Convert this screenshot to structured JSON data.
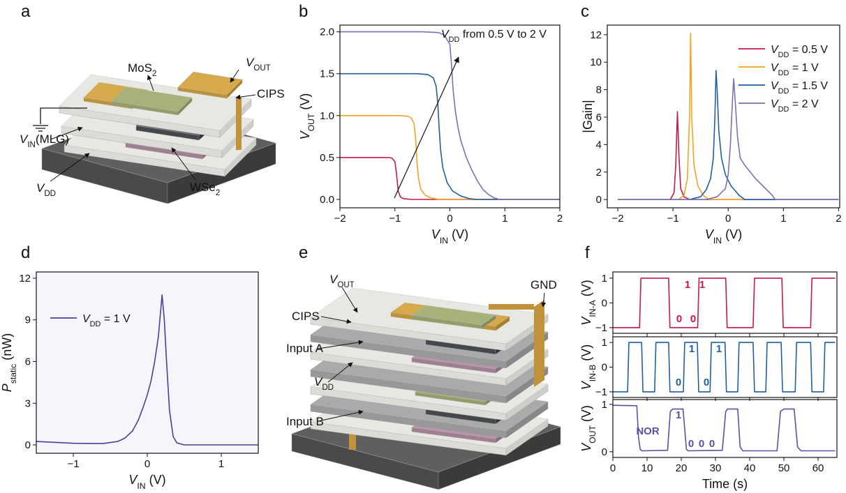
{
  "figure": {
    "panel_letters": [
      "a",
      "b",
      "c",
      "d",
      "e",
      "f"
    ],
    "device_a": {
      "labels": [
        [
          {
            "text": "MoS"
          },
          {
            "text": "2",
            "sub": true
          }
        ],
        [
          {
            "text": "V",
            "italic": true
          },
          {
            "text": "OUT",
            "sub": true
          }
        ],
        "CIPS",
        [
          {
            "text": "V",
            "italic": true
          },
          {
            "text": "IN",
            "sub": true
          },
          {
            "text": "(MLG)"
          }
        ],
        [
          {
            "text": "V",
            "italic": true
          },
          {
            "text": "DD",
            "sub": true
          }
        ],
        [
          {
            "text": "WSe"
          },
          {
            "text": "2",
            "sub": true
          }
        ]
      ]
    },
    "device_e": {
      "labels": [
        [
          {
            "text": "V",
            "italic": true
          },
          {
            "text": "OUT",
            "sub": true
          }
        ],
        "GND",
        "CIPS",
        "Input A",
        [
          {
            "text": "V",
            "italic": true
          },
          {
            "text": "DD",
            "sub": true
          }
        ],
        "Input B"
      ]
    }
  },
  "chart_data": [
    {
      "panel": "b",
      "type": "line",
      "x_label": [
        {
          "text": "V",
          "italic": true
        },
        {
          "text": "IN",
          "sub": true
        },
        {
          "text": " (V)"
        }
      ],
      "y_label": [
        {
          "text": "V",
          "italic": true
        },
        {
          "text": "OUT",
          "sub": true
        },
        {
          "text": " (V)"
        }
      ],
      "annotation": [
        {
          "text": "V",
          "italic": true
        },
        {
          "text": "DD",
          "sub": true
        },
        {
          "text": " from 0.5 V to 2 V"
        }
      ],
      "xlim": [
        -2,
        2
      ],
      "ylim": [
        -0.1,
        2.08
      ],
      "xticks": [
        {
          "value": -2,
          "label": "−2"
        },
        {
          "value": -1,
          "label": "−1"
        },
        0,
        1,
        2
      ],
      "yticks": [
        {
          "value": 0,
          "label": "0.0"
        },
        0.5,
        {
          "value": 1,
          "label": "1.0"
        },
        1.5,
        {
          "value": 2,
          "label": "2.0"
        }
      ],
      "series": [
        {
          "color": "#c8174a",
          "x": [
            -2,
            -1.2,
            -1.1,
            -1.05,
            -1.0,
            -0.97,
            -0.94,
            -0.9,
            -0.85,
            -0.7,
            2
          ],
          "values": [
            0.5,
            0.5,
            0.5,
            0.49,
            0.45,
            0.3,
            0.1,
            0.03,
            0.01,
            0,
            0
          ]
        },
        {
          "color": "#f5a21c",
          "x": [
            -2,
            -0.9,
            -0.75,
            -0.7,
            -0.65,
            -0.62,
            -0.6,
            -0.57,
            -0.53,
            -0.45,
            -0.35,
            -0.2,
            2
          ],
          "values": [
            1,
            1,
            0.99,
            0.97,
            0.9,
            0.7,
            0.45,
            0.25,
            0.12,
            0.05,
            0.02,
            0,
            0
          ]
        },
        {
          "color": "#1f5fa0",
          "x": [
            -2,
            -0.6,
            -0.4,
            -0.3,
            -0.25,
            -0.22,
            -0.2,
            -0.17,
            -0.13,
            -0.05,
            0.05,
            0.2,
            0.35,
            0.5,
            2
          ],
          "values": [
            1.5,
            1.5,
            1.49,
            1.45,
            1.35,
            1.15,
            0.9,
            0.6,
            0.38,
            0.2,
            0.1,
            0.04,
            0.01,
            0,
            0
          ]
        },
        {
          "color": "#7b6fb8",
          "x": [
            -2,
            -0.5,
            -0.2,
            -0.1,
            0,
            0.03,
            0.06,
            0.1,
            0.15,
            0.2,
            0.3,
            0.4,
            0.5,
            0.6,
            0.7,
            0.8,
            0.9,
            2
          ],
          "values": [
            2,
            2,
            1.99,
            1.96,
            1.85,
            1.6,
            1.3,
            1.05,
            0.85,
            0.7,
            0.5,
            0.35,
            0.22,
            0.12,
            0.06,
            0.02,
            0,
            0
          ]
        }
      ]
    },
    {
      "panel": "c",
      "type": "line",
      "legend": "upper right",
      "x_label": [
        {
          "text": "V",
          "italic": true
        },
        {
          "text": "IN",
          "sub": true
        },
        {
          "text": " (V)"
        }
      ],
      "y_label": "|Gain|",
      "xlim": [
        -2.19,
        2.02
      ],
      "ylim": [
        -0.6,
        12.7
      ],
      "xticks": [
        {
          "value": -2,
          "label": "−2"
        },
        {
          "value": -1,
          "label": "−1"
        },
        0,
        1,
        2
      ],
      "yticks": [
        0,
        2,
        4,
        6,
        8,
        10,
        12
      ],
      "series": [
        {
          "name": [
            {
              "text": "V",
              "italic": true
            },
            {
              "text": "DD",
              "sub": true
            },
            {
              "text": " = 0.5 V"
            }
          ],
          "color": "#c8174a",
          "x": [
            -2,
            -1.05,
            -0.98,
            -0.95,
            -0.92,
            -0.89,
            -0.86,
            -0.8,
            -0.7,
            2
          ],
          "values": [
            0,
            0,
            0.5,
            2.5,
            6.4,
            3,
            0.8,
            0.2,
            0,
            0
          ]
        },
        {
          "name": [
            {
              "text": "V",
              "italic": true
            },
            {
              "text": "DD",
              "sub": true
            },
            {
              "text": " = 1 V"
            }
          ],
          "color": "#f5a21c",
          "x": [
            -2,
            -0.9,
            -0.8,
            -0.74,
            -0.7,
            -0.68,
            -0.66,
            -0.62,
            -0.55,
            -0.45,
            -0.35,
            2
          ],
          "values": [
            0,
            0,
            0.3,
            1.5,
            6,
            12.1,
            6,
            2.5,
            1,
            0.3,
            0,
            0
          ]
        },
        {
          "name": [
            {
              "text": "V",
              "italic": true
            },
            {
              "text": "DD",
              "sub": true
            },
            {
              "text": " = 1.5 V"
            }
          ],
          "color": "#1f5fa0",
          "x": [
            -2,
            -0.7,
            -0.5,
            -0.4,
            -0.32,
            -0.27,
            -0.24,
            -0.22,
            -0.2,
            -0.17,
            -0.12,
            -0.05,
            0.05,
            0.2,
            0.3,
            2
          ],
          "values": [
            0,
            0,
            0.2,
            0.7,
            1.5,
            3,
            6,
            9.4,
            8,
            5,
            3,
            1.8,
            1,
            0.3,
            0,
            0
          ]
        },
        {
          "name": [
            {
              "text": "V",
              "italic": true
            },
            {
              "text": "DD",
              "sub": true
            },
            {
              "text": " = 2 V"
            }
          ],
          "color": "#7b6fb8",
          "x": [
            -2,
            -0.4,
            -0.2,
            -0.05,
            0,
            0.04,
            0.08,
            0.1,
            0.13,
            0.17,
            0.22,
            0.3,
            0.4,
            0.5,
            0.6,
            0.7,
            0.8,
            0.85,
            2
          ],
          "values": [
            0,
            0,
            0.2,
            0.8,
            1.8,
            4,
            7.5,
            8.8,
            7,
            4.5,
            3,
            2.5,
            2,
            1.5,
            1.1,
            0.7,
            0.3,
            0,
            0
          ]
        }
      ]
    },
    {
      "panel": "d",
      "type": "line",
      "legend": "upper left",
      "background": "#f6f5fc",
      "x_label": [
        {
          "text": "V",
          "italic": true
        },
        {
          "text": "IN",
          "sub": true
        },
        {
          "text": " (V)"
        }
      ],
      "y_label": [
        {
          "text": "P",
          "italic": true
        },
        {
          "text": "static",
          "sub": true
        },
        {
          "text": " (nW)"
        }
      ],
      "xlim": [
        -1.5,
        1.5
      ],
      "ylim": [
        -0.6,
        12.45
      ],
      "xticks": [
        {
          "value": -1,
          "label": "−1"
        },
        0,
        1
      ],
      "yticks": [
        0,
        3,
        6,
        9,
        12
      ],
      "series": [
        {
          "name": [
            {
              "text": "V",
              "italic": true
            },
            {
              "text": "DD",
              "sub": true
            },
            {
              "text": " = 1 V"
            }
          ],
          "color": "#4a3f9a",
          "x": [
            -1.5,
            -1,
            -0.6,
            -0.4,
            -0.3,
            -0.2,
            -0.12,
            -0.05,
            0,
            0.05,
            0.1,
            0.15,
            0.2,
            0.23,
            0.26,
            0.3,
            0.35,
            0.4,
            0.5,
            1.5
          ],
          "values": [
            0.25,
            0.12,
            0.1,
            0.25,
            0.5,
            1,
            1.8,
            2.8,
            3.6,
            4.6,
            6,
            7.8,
            10.8,
            9,
            6,
            2.5,
            0.6,
            0.15,
            0,
            0
          ]
        }
      ]
    },
    {
      "panel": "f",
      "type": "line",
      "xtick_labels": false,
      "y_label": [
        {
          "text": "V",
          "italic": true
        },
        {
          "text": "IN-A",
          "sub": true
        },
        {
          "text": " (V)"
        }
      ],
      "xlim": [
        0,
        65.5
      ],
      "ylim": [
        -1.23,
        1.25
      ],
      "xticks": [
        0,
        10,
        20,
        30,
        40,
        50,
        60
      ],
      "yticks": [
        {
          "value": -1,
          "label": "−1"
        },
        0,
        1
      ],
      "annotations": [
        "0",
        "0",
        "1",
        "1"
      ],
      "series": [
        {
          "color": "#c8174a",
          "x": [
            0,
            7.8,
            8.2,
            16.3,
            16.7,
            24.8,
            25.2,
            33,
            33.4,
            41,
            41.4,
            49.4,
            49.8,
            57.8,
            58.2,
            65
          ],
          "values": [
            -1,
            -1,
            1,
            1,
            -1,
            -1,
            1,
            1,
            -1,
            -1,
            1,
            1,
            -1,
            -1,
            1,
            1
          ]
        }
      ]
    },
    {
      "panel": "f",
      "type": "line",
      "xtick_labels": false,
      "y_label": [
        {
          "text": "V",
          "italic": true
        },
        {
          "text": "IN-B",
          "sub": true
        },
        {
          "text": " (V)"
        }
      ],
      "xlim": [
        0,
        65.5
      ],
      "ylim": [
        -1.23,
        1.23
      ],
      "xticks": [
        0,
        10,
        20,
        30,
        40,
        50,
        60
      ],
      "yticks": [
        {
          "value": -1,
          "label": "−1"
        },
        0,
        1
      ],
      "annotations": [
        "1",
        "0",
        "1",
        "0"
      ],
      "series": [
        {
          "color": "#1f5fa0",
          "x": [
            0,
            4.3,
            4.7,
            8.4,
            8.8,
            12.2,
            12.6,
            16.3,
            16.7,
            20.6,
            21,
            24.7,
            25.1,
            28.4,
            28.8,
            32.8,
            33.2,
            36.5,
            36.9,
            41,
            41.4,
            44.7,
            45.1,
            49.2,
            49.6,
            53.3,
            53.7,
            57.8,
            58.2,
            61.6,
            62,
            65
          ],
          "values": [
            -1,
            -1,
            1,
            1,
            -1,
            -1,
            1,
            1,
            -1,
            -1,
            1,
            1,
            -1,
            -1,
            1,
            1,
            -1,
            -1,
            1,
            1,
            -1,
            -1,
            1,
            1,
            -1,
            -1,
            1,
            1,
            -1,
            -1,
            1,
            1
          ]
        }
      ]
    },
    {
      "panel": "f",
      "type": "line",
      "x_label": "Time (s)",
      "y_label": [
        {
          "text": "V",
          "italic": true
        },
        {
          "text": "OUT",
          "sub": true
        },
        {
          "text": " (V)"
        }
      ],
      "xlim": [
        0,
        65.5
      ],
      "ylim": [
        -0.12,
        1.1
      ],
      "xticks": [
        0,
        10,
        20,
        30,
        40,
        50,
        60
      ],
      "yticks": [
        0,
        1
      ],
      "annotations": [
        "NOR",
        "1",
        "0",
        "0",
        "0"
      ],
      "series": [
        {
          "color": "#5b4fa6",
          "x": [
            0,
            7,
            7.5,
            8,
            8.5,
            16,
            16.8,
            17.5,
            20.5,
            21.5,
            22,
            32,
            33,
            33.5,
            36.5,
            37.2,
            38,
            48,
            49,
            50,
            53,
            54,
            55,
            65
          ],
          "values": [
            0.98,
            0.97,
            0.3,
            0.05,
            0.02,
            0.03,
            0.85,
            0.9,
            0.9,
            0.05,
            0.02,
            0.03,
            0.85,
            0.9,
            0.9,
            0.1,
            0.02,
            0.02,
            0.85,
            0.9,
            0.9,
            0.1,
            0.02,
            0.02
          ]
        }
      ]
    }
  ]
}
